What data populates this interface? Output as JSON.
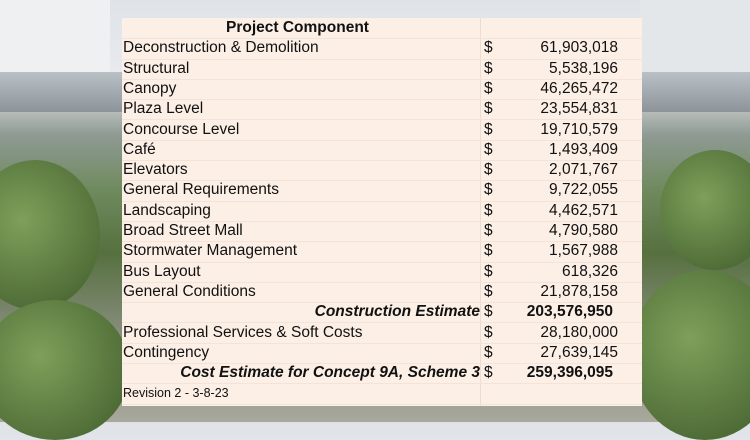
{
  "table": {
    "header": "Project Component",
    "currency": "$",
    "rows": [
      {
        "label": "Deconstruction & Demolition",
        "amount": "61,903,018"
      },
      {
        "label": "Structural",
        "amount": "5,538,196"
      },
      {
        "label": "Canopy",
        "amount": "46,265,472"
      },
      {
        "label": "Plaza Level",
        "amount": "23,554,831"
      },
      {
        "label": "Concourse Level",
        "amount": "19,710,579"
      },
      {
        "label": "Café",
        "amount": "1,493,409"
      },
      {
        "label": "Elevators",
        "amount": "2,071,767"
      },
      {
        "label": "General Requirements",
        "amount": "9,722,055"
      },
      {
        "label": "Landscaping",
        "amount": "4,462,571"
      },
      {
        "label": "Broad Street Mall",
        "amount": "4,790,580"
      },
      {
        "label": "Stormwater Management",
        "amount": "1,567,988"
      },
      {
        "label": "Bus Layout",
        "amount": "618,326"
      },
      {
        "label": "General Conditions",
        "amount": "21,878,158"
      }
    ],
    "construction_total": {
      "label": "Construction Estimate",
      "amount": "203,576,950"
    },
    "extra_rows": [
      {
        "label": "Professional Services & Soft Costs",
        "amount": "28,180,000"
      },
      {
        "label": "Contingency",
        "amount": "27,639,145"
      }
    ],
    "grand_total": {
      "label": "Cost Estimate for Concept 9A, Scheme 3",
      "amount": "259,396,095"
    },
    "revision": "Revision 2 -  3-8-23"
  }
}
